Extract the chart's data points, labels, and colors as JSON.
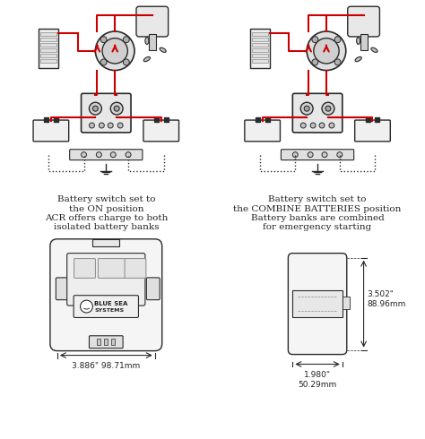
{
  "bg_color": "#ffffff",
  "line_color": "#2a2a2a",
  "red_color": "#cc0000",
  "gray_color": "#888888",
  "light_gray": "#cccccc",
  "text_color": "#222222",
  "text1": "Battery switch set to\nthe ON position\nACR offers charge to both\nisolated battery banks",
  "text2": "Battery switch set to\nthe COMBINE BATTERIES position\nBattery banks are combined\nfor emergency starting",
  "dim1": "3.886\" 98.71mm",
  "dim2": "3.502\"\n88.96mm",
  "dim3": "1.980\"\n50.29mm"
}
